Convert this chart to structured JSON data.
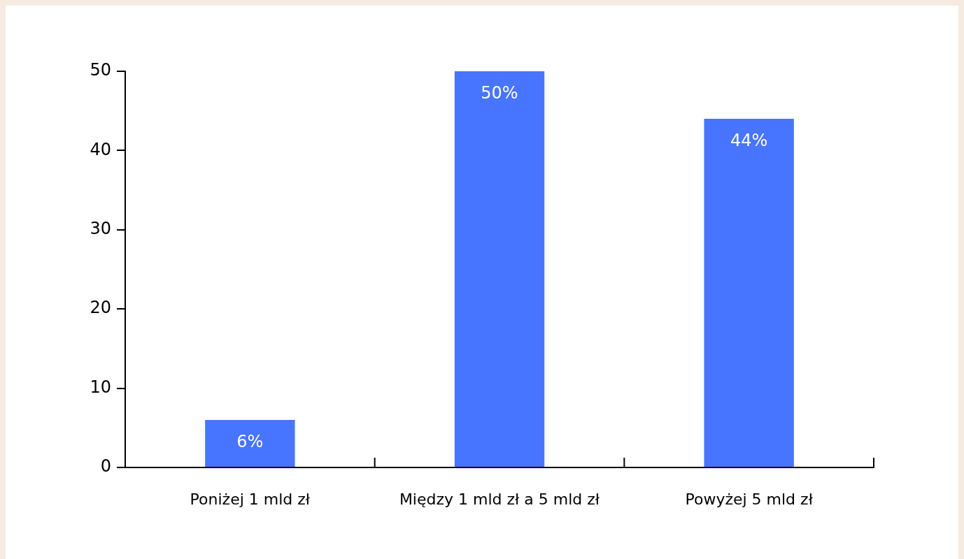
{
  "chart_data": {
    "type": "bar",
    "categories": [
      "Poniżej 1 mld zł",
      "Między 1 mld zł a 5 mld zł",
      "Powyżej 5 mld zł"
    ],
    "values": [
      6,
      50,
      44
    ],
    "value_labels": [
      "6%",
      "50%",
      "44%"
    ],
    "color": "#4775ff",
    "ylim": [
      0,
      50
    ],
    "yticks": [
      0,
      10,
      20,
      30,
      40,
      50
    ],
    "grid": false
  }
}
